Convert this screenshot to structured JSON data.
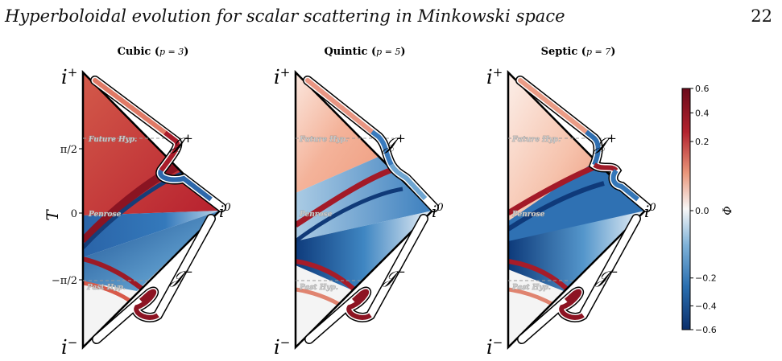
{
  "header": {
    "running_title": "Hyperboloidal evolution for scalar scattering in Minkowski space",
    "page_number": "22"
  },
  "chart_data": {
    "type": "heatmap",
    "panels": [
      {
        "title_bold": "Cubic",
        "title_p": "p = 3"
      },
      {
        "title_bold": "Quintic",
        "title_p": "p = 5"
      },
      {
        "title_bold": "Septic",
        "title_p": "p = 7"
      }
    ],
    "labels": {
      "i_plus": "i",
      "i_plus_sup": "+",
      "i_minus": "i",
      "i_minus_sup": "−",
      "i_zero": "i",
      "i_zero_sup": "0",
      "scri_plus": "𝒥",
      "scri_plus_sup": "+",
      "scri_minus": "𝒥",
      "scri_minus_sup": "−",
      "future_slice": "Future Hyp.",
      "penrose_slice": "Penrose",
      "past_slice": "Past Hyp."
    },
    "ylabel": "T",
    "yticks": [
      "π/2",
      "0",
      "−π/2"
    ],
    "colorbar": {
      "label": "Φ",
      "range": [
        -0.6,
        0.6
      ],
      "ticks": [
        "0.6",
        "0.4",
        "0.2",
        "0.0",
        "−0.2",
        "−0.4",
        "−0.6"
      ],
      "colors": {
        "negative": "#0b2f6b",
        "mid": "#f7f7f7",
        "positive": "#6b0a1a"
      }
    }
  }
}
